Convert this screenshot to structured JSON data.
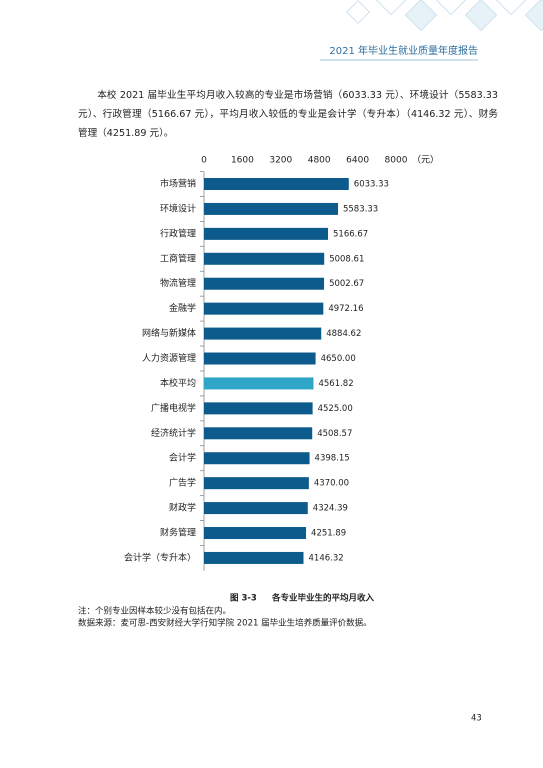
{
  "header": {
    "title": "2021 年毕业生就业质量年度报告"
  },
  "paragraph": "本校 2021 届毕业生平均月收入较高的专业是市场营销（6033.33 元）、环境设计（5583.33 元）、行政管理（5166.67 元），平均月收入较低的专业是会计学（专升本）（4146.32 元）、财务管理（4251.89 元）。",
  "chart_data": {
    "type": "hbar",
    "unit": "（元）",
    "categories": [
      "市场营销",
      "环境设计",
      "行政管理",
      "工商管理",
      "物流管理",
      "金融学",
      "网络与新媒体",
      "人力资源管理",
      "本校平均",
      "广播电视学",
      "经济统计学",
      "会计学",
      "广告学",
      "财政学",
      "财务管理",
      "会计学（专升本）"
    ],
    "values": [
      6033.33,
      5583.33,
      5166.67,
      5008.61,
      5002.67,
      4972.16,
      4884.62,
      4650,
      4561.82,
      4525,
      4508.57,
      4398.15,
      4370,
      4324.39,
      4251.89,
      4146.32
    ],
    "value_labels": [
      "6033.33",
      "5583.33",
      "5166.67",
      "5008.61",
      "5002.67",
      "4972.16",
      "4884.62",
      "4650.00",
      "4561.82",
      "4525.00",
      "4508.57",
      "4398.15",
      "4370.00",
      "4324.39",
      "4251.89",
      "4146.32"
    ],
    "colors": [
      "#0d5b8c",
      "#0d5b8c",
      "#0d5b8c",
      "#0d5b8c",
      "#0d5b8c",
      "#0d5b8c",
      "#0d5b8c",
      "#0d5b8c",
      "#2fa6c8",
      "#0d5b8c",
      "#0d5b8c",
      "#0d5b8c",
      "#0d5b8c",
      "#0d5b8c",
      "#0d5b8c",
      "#0d5b8c"
    ],
    "xlim": [
      0,
      8000
    ],
    "xticks": [
      0,
      1600,
      3200,
      4800,
      6400,
      8000
    ]
  },
  "caption": {
    "number": "图 3-3",
    "text": "各专业毕业生的平均月收入"
  },
  "notes": [
    "注：个别专业因样本较少没有包括在内。",
    "数据来源：麦可思-西安财经大学行知学院 2021 届毕业生培养质量评价数据。"
  ],
  "page_number": "43"
}
